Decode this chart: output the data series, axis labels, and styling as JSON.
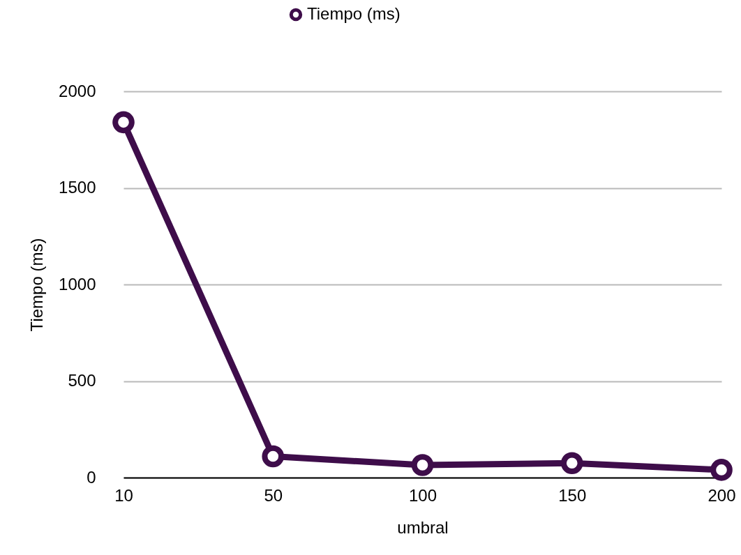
{
  "chart_data": {
    "type": "line",
    "xlabel": "umbral",
    "ylabel": "Tiempo (ms)",
    "categories": [
      "10",
      "50",
      "100",
      "150",
      "200"
    ],
    "series": [
      {
        "name": "Tiempo (ms)",
        "color": "#3e0d4a",
        "values": [
          1840,
          110,
          65,
          75,
          40
        ]
      }
    ],
    "ylim": [
      0,
      2000
    ],
    "yticks": [
      0,
      500,
      1000,
      1500,
      2000
    ],
    "grid": "y",
    "legend": "top",
    "marker": "circle",
    "line_style": "solid"
  }
}
